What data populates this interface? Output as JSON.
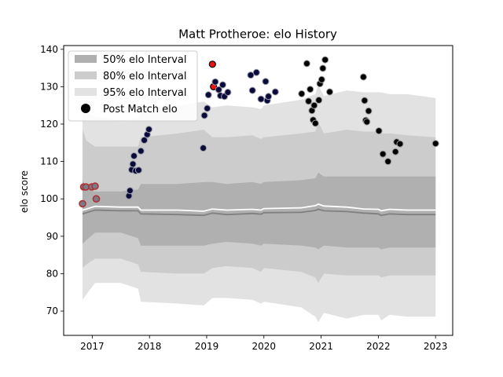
{
  "chart_data": {
    "type": "scatter",
    "title": "Matt Protheroe: elo History",
    "xlabel": "",
    "ylabel": "elo score",
    "xlim": [
      2016.5,
      2023.3
    ],
    "ylim": [
      63.5,
      141
    ],
    "x_ticks": [
      2017,
      2018,
      2019,
      2020,
      2021,
      2022,
      2023
    ],
    "y_ticks": [
      70,
      80,
      90,
      100,
      110,
      120,
      130,
      140
    ],
    "grid": false,
    "legend_position": "top-left",
    "legend": [
      "50% elo Interval",
      "80% elo Interval",
      "95% elo Interval",
      "Post Match elo"
    ],
    "colors": {
      "band50": "#b0b0b0",
      "band80": "#cccccc",
      "band95": "#e2e2e2",
      "mean_line": "#ffffff",
      "median_line": "#808080",
      "point_navy": "#0b0b3b",
      "point_black": "#000000",
      "point_highlight": "#ee1111",
      "point_edge_red": "#b03030"
    },
    "bands": {
      "x": [
        2016.83,
        2016.9,
        2017.05,
        2017.5,
        2017.8,
        2017.85,
        2018.5,
        2018.95,
        2019.1,
        2019.35,
        2019.8,
        2019.95,
        2020.0,
        2020.65,
        2020.9,
        2020.95,
        2021.05,
        2021.45,
        2021.75,
        2022.0,
        2022.05,
        2022.2,
        2022.5,
        2023.0
      ],
      "p95_low": [
        73.0,
        74.5,
        77.5,
        77.5,
        76.0,
        72.5,
        72.0,
        71.5,
        73.5,
        73.5,
        73.0,
        72.0,
        72.5,
        71.0,
        68.5,
        67.0,
        69.5,
        68.0,
        69.0,
        69.0,
        67.5,
        69.0,
        68.5,
        68.5
      ],
      "p95_high": [
        125.0,
        123.0,
        122.0,
        121.0,
        121.5,
        124.5,
        125.0,
        126.0,
        124.5,
        125.0,
        124.5,
        124.0,
        125.0,
        126.5,
        128.0,
        130.5,
        127.5,
        129.0,
        128.5,
        128.5,
        128.5,
        128.0,
        128.0,
        127.0
      ],
      "p80_low": [
        81.5,
        82.5,
        84.0,
        84.0,
        82.5,
        80.5,
        80.0,
        80.0,
        81.5,
        82.0,
        81.5,
        80.5,
        81.5,
        80.5,
        79.0,
        77.5,
        80.0,
        79.5,
        79.5,
        79.5,
        79.0,
        79.5,
        79.5,
        79.5
      ],
      "p80_high": [
        118.5,
        115.5,
        114.0,
        114.0,
        114.0,
        116.5,
        117.5,
        118.5,
        116.5,
        116.5,
        117.0,
        116.0,
        116.5,
        117.5,
        118.0,
        120.5,
        117.5,
        118.5,
        118.0,
        118.0,
        117.5,
        117.5,
        117.0,
        116.5
      ],
      "p50_low": [
        88.0,
        89.0,
        91.0,
        91.0,
        89.5,
        87.5,
        87.5,
        87.5,
        88.0,
        88.5,
        88.0,
        87.5,
        88.0,
        87.5,
        87.0,
        86.5,
        87.5,
        87.0,
        87.0,
        87.0,
        86.5,
        87.0,
        87.0,
        87.0
      ],
      "p50_high": [
        105.0,
        102.5,
        102.0,
        102.0,
        102.5,
        104.0,
        104.0,
        104.5,
        104.5,
        104.0,
        104.5,
        104.0,
        104.5,
        105.0,
        105.5,
        107.0,
        106.0,
        106.0,
        106.0,
        106.0,
        106.0,
        106.0,
        106.0,
        106.0
      ],
      "mean": [
        97.0,
        97.3,
        98.0,
        97.8,
        97.8,
        97.0,
        97.0,
        96.7,
        97.3,
        97.0,
        97.2,
        97.0,
        97.4,
        97.6,
        98.2,
        98.6,
        98.1,
        97.8,
        97.3,
        97.2,
        96.8,
        97.2,
        97.0,
        97.0
      ],
      "median": [
        96.0,
        96.3,
        97.0,
        96.8,
        96.8,
        96.0,
        95.8,
        95.6,
        96.2,
        95.8,
        96.1,
        95.9,
        96.3,
        96.4,
        96.9,
        97.2,
        96.8,
        96.6,
        96.2,
        96.0,
        95.6,
        96.0,
        95.8,
        95.8
      ]
    },
    "points": [
      {
        "x": 2016.83,
        "y": 98.7,
        "style": "red_edge"
      },
      {
        "x": 2016.85,
        "y": 103.2,
        "style": "red_edge"
      },
      {
        "x": 2016.89,
        "y": 103.2,
        "style": "red_edge"
      },
      {
        "x": 2016.99,
        "y": 103.2,
        "style": "red_edge"
      },
      {
        "x": 2017.05,
        "y": 103.4,
        "style": "red_edge"
      },
      {
        "x": 2017.07,
        "y": 100.0,
        "style": "red_edge"
      },
      {
        "x": 2017.64,
        "y": 100.8,
        "style": "navy"
      },
      {
        "x": 2017.66,
        "y": 102.2,
        "style": "navy"
      },
      {
        "x": 2017.69,
        "y": 107.8,
        "style": "navy"
      },
      {
        "x": 2017.71,
        "y": 109.3,
        "style": "navy"
      },
      {
        "x": 2017.73,
        "y": 111.5,
        "style": "navy"
      },
      {
        "x": 2017.76,
        "y": 107.5,
        "style": "navy"
      },
      {
        "x": 2017.81,
        "y": 107.7,
        "style": "navy"
      },
      {
        "x": 2017.85,
        "y": 112.8,
        "style": "navy"
      },
      {
        "x": 2017.91,
        "y": 115.7,
        "style": "navy"
      },
      {
        "x": 2017.96,
        "y": 117.2,
        "style": "navy"
      },
      {
        "x": 2017.99,
        "y": 118.6,
        "style": "navy"
      },
      {
        "x": 2018.94,
        "y": 113.6,
        "style": "navy"
      },
      {
        "x": 2018.96,
        "y": 122.3,
        "style": "navy"
      },
      {
        "x": 2019.01,
        "y": 124.2,
        "style": "navy"
      },
      {
        "x": 2019.03,
        "y": 127.8,
        "style": "navy"
      },
      {
        "x": 2019.1,
        "y": 136.0,
        "style": "highlight"
      },
      {
        "x": 2019.12,
        "y": 130.0,
        "style": "highlight"
      },
      {
        "x": 2019.15,
        "y": 131.3,
        "style": "navy"
      },
      {
        "x": 2019.21,
        "y": 129.2,
        "style": "navy"
      },
      {
        "x": 2019.24,
        "y": 127.6,
        "style": "navy"
      },
      {
        "x": 2019.28,
        "y": 130.5,
        "style": "navy"
      },
      {
        "x": 2019.31,
        "y": 127.4,
        "style": "navy"
      },
      {
        "x": 2019.37,
        "y": 128.5,
        "style": "navy"
      },
      {
        "x": 2019.77,
        "y": 133.1,
        "style": "navy"
      },
      {
        "x": 2019.8,
        "y": 129.0,
        "style": "navy"
      },
      {
        "x": 2019.87,
        "y": 133.8,
        "style": "navy"
      },
      {
        "x": 2019.95,
        "y": 126.7,
        "style": "navy"
      },
      {
        "x": 2020.03,
        "y": 131.4,
        "style": "navy"
      },
      {
        "x": 2020.06,
        "y": 126.3,
        "style": "navy"
      },
      {
        "x": 2020.08,
        "y": 127.4,
        "style": "navy"
      },
      {
        "x": 2020.2,
        "y": 128.6,
        "style": "navy"
      },
      {
        "x": 2020.66,
        "y": 128.1,
        "style": "black"
      },
      {
        "x": 2020.75,
        "y": 136.2,
        "style": "black"
      },
      {
        "x": 2020.78,
        "y": 126.1,
        "style": "black"
      },
      {
        "x": 2020.81,
        "y": 129.3,
        "style": "black"
      },
      {
        "x": 2020.84,
        "y": 123.6,
        "style": "black"
      },
      {
        "x": 2020.86,
        "y": 121.1,
        "style": "black"
      },
      {
        "x": 2020.88,
        "y": 125.0,
        "style": "black"
      },
      {
        "x": 2020.9,
        "y": 120.2,
        "style": "black"
      },
      {
        "x": 2020.96,
        "y": 126.4,
        "style": "black"
      },
      {
        "x": 2020.98,
        "y": 130.8,
        "style": "black"
      },
      {
        "x": 2021.01,
        "y": 131.9,
        "style": "black"
      },
      {
        "x": 2021.03,
        "y": 134.9,
        "style": "black"
      },
      {
        "x": 2021.07,
        "y": 137.2,
        "style": "black"
      },
      {
        "x": 2021.15,
        "y": 128.6,
        "style": "black"
      },
      {
        "x": 2021.74,
        "y": 132.6,
        "style": "black"
      },
      {
        "x": 2021.76,
        "y": 126.3,
        "style": "black"
      },
      {
        "x": 2021.78,
        "y": 121.0,
        "style": "black"
      },
      {
        "x": 2021.8,
        "y": 120.6,
        "style": "black"
      },
      {
        "x": 2021.83,
        "y": 123.5,
        "style": "black"
      },
      {
        "x": 2022.01,
        "y": 118.2,
        "style": "black"
      },
      {
        "x": 2022.08,
        "y": 112.0,
        "style": "black"
      },
      {
        "x": 2022.17,
        "y": 110.0,
        "style": "black"
      },
      {
        "x": 2022.3,
        "y": 112.6,
        "style": "black"
      },
      {
        "x": 2022.32,
        "y": 115.2,
        "style": "black"
      },
      {
        "x": 2022.38,
        "y": 114.7,
        "style": "black"
      },
      {
        "x": 2023.0,
        "y": 114.8,
        "style": "black"
      }
    ]
  }
}
